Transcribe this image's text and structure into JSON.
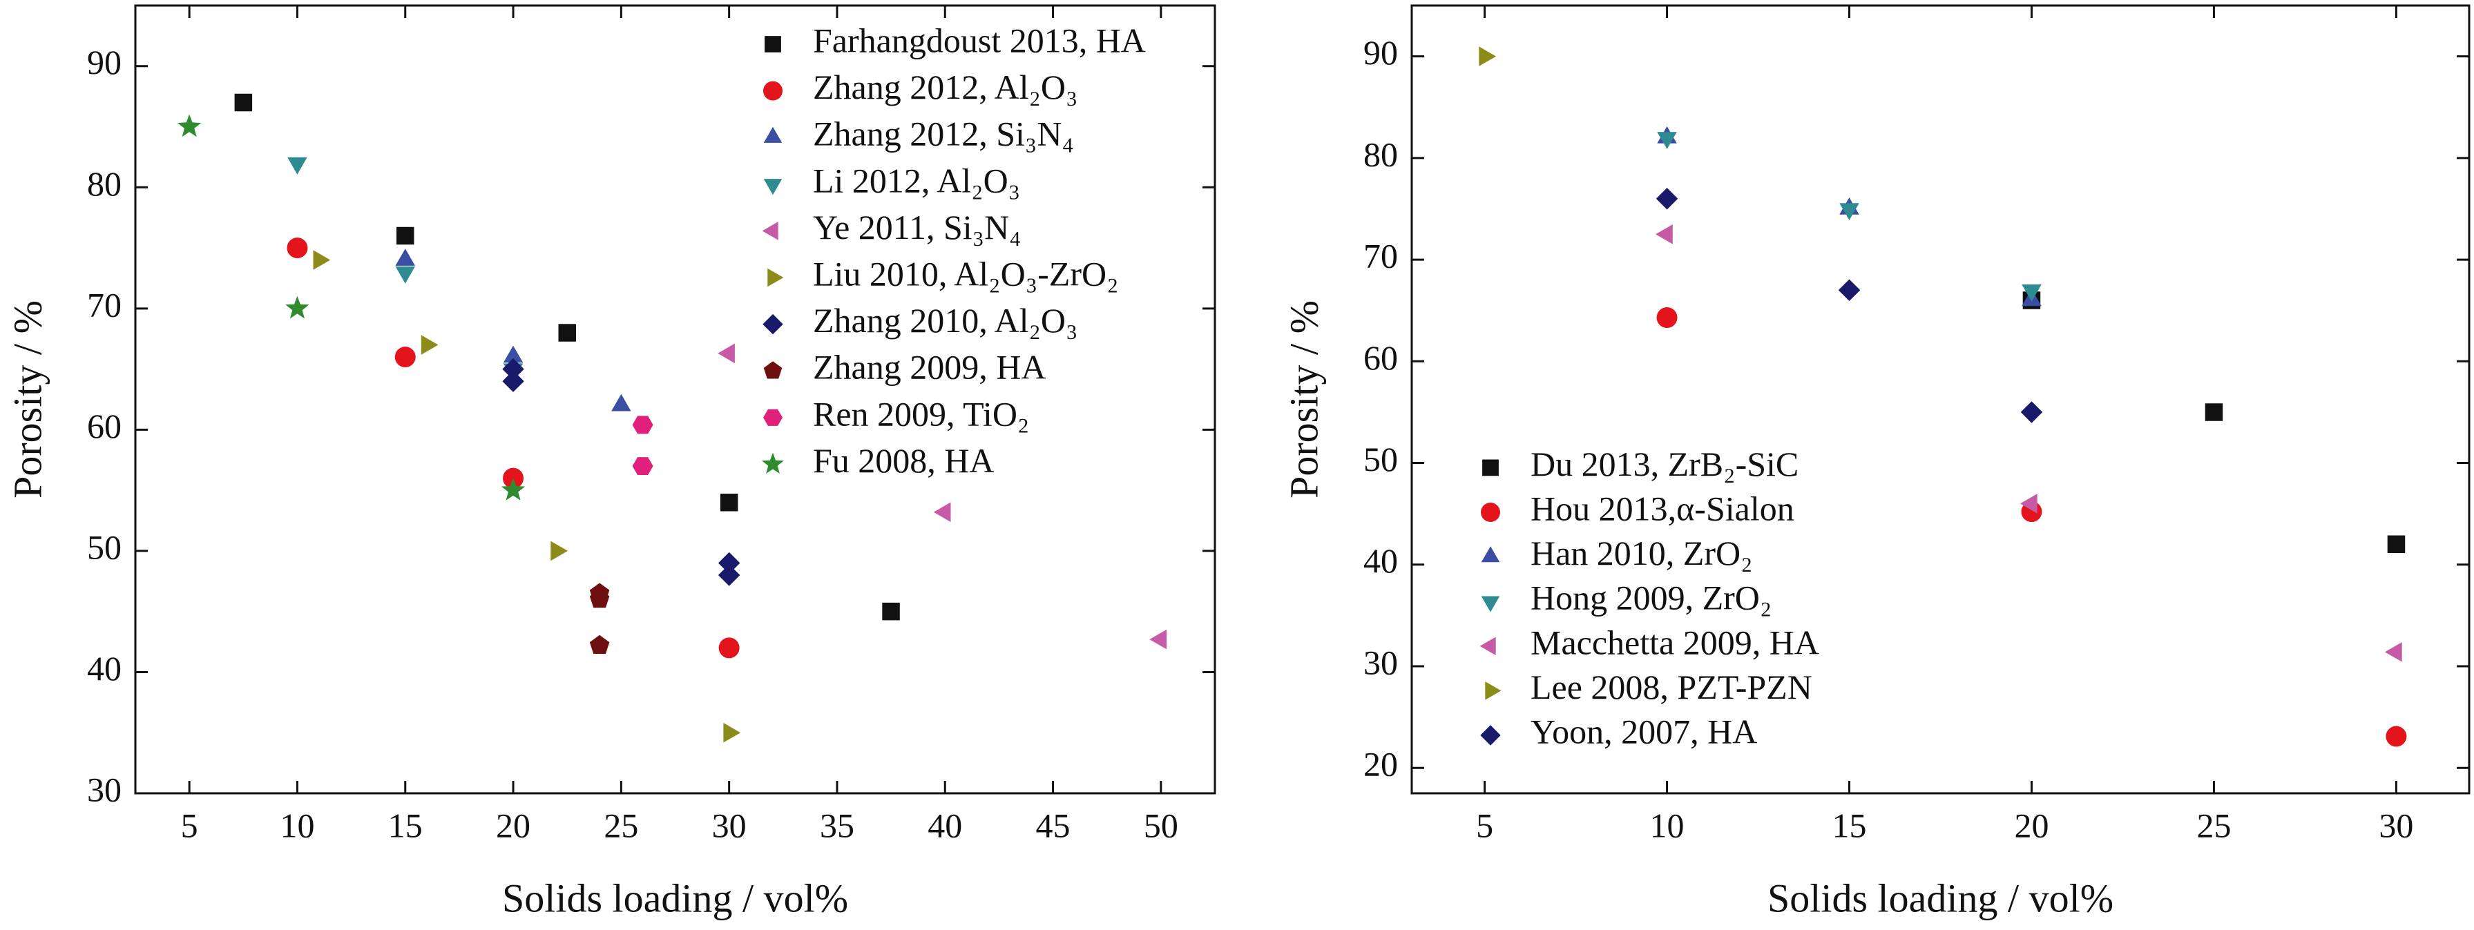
{
  "chart_data": [
    {
      "type": "scatter",
      "xlabel": "Solids loading / vol%",
      "ylabel": "Porosity / %",
      "xlim": [
        2.5,
        52.5
      ],
      "xticks": [
        5,
        10,
        15,
        20,
        25,
        30,
        35,
        40,
        45,
        50
      ],
      "ylim": [
        30,
        95
      ],
      "yticks": [
        30,
        40,
        50,
        60,
        70,
        80,
        90
      ],
      "legend": "upper right",
      "series": [
        {
          "name": "Farhangdoust 2013, HA",
          "color": "#111111",
          "marker": "square",
          "x": [
            7.5,
            15,
            22.5,
            30,
            37.5
          ],
          "y": [
            87,
            76,
            68,
            54,
            45
          ]
        },
        {
          "name": "Zhang 2012, Al₂O₃",
          "color": "#e3141b",
          "marker": "circle",
          "x": [
            10,
            15,
            20,
            30
          ],
          "y": [
            75,
            66,
            56,
            42
          ]
        },
        {
          "name": "Zhang 2012, Si₃N₄",
          "color": "#3a4fa3",
          "marker": "triangle-up",
          "x": [
            15,
            20,
            25
          ],
          "y": [
            74,
            66,
            62
          ]
        },
        {
          "name": "Li 2012, Al₂O₃",
          "color": "#2e8b92",
          "marker": "triangle-down",
          "x": [
            10,
            15,
            20
          ],
          "y": [
            82,
            73,
            65
          ]
        },
        {
          "name": "Ye 2011, Si₃N₄",
          "color": "#c65aa6",
          "marker": "triangle-left",
          "x": [
            30,
            40,
            50
          ],
          "y": [
            66.3,
            53.2,
            42.7
          ]
        },
        {
          "name": "Liu 2010, Al₂O₃-ZrO₂",
          "color": "#8d8c1b",
          "marker": "triangle-right",
          "x": [
            11,
            16,
            22,
            30
          ],
          "y": [
            74,
            67,
            50,
            35
          ]
        },
        {
          "name": "Zhang 2010, Al₂O₃",
          "color": "#1a1a6b",
          "marker": "diamond",
          "x": [
            20,
            20,
            30,
            30
          ],
          "y": [
            65,
            64,
            49,
            48
          ]
        },
        {
          "name": "Zhang 2009, HA",
          "color": "#6e1010",
          "marker": "pentagon",
          "x": [
            24,
            24,
            24
          ],
          "y": [
            46.5,
            46,
            42.2
          ]
        },
        {
          "name": "Ren 2009, TiO₂",
          "color": "#e0207a",
          "marker": "hexagon",
          "x": [
            26,
            26
          ],
          "y": [
            60.4,
            57
          ]
        },
        {
          "name": "Fu 2008, HA",
          "color": "#2e8b2e",
          "marker": "star",
          "x": [
            5,
            10,
            20
          ],
          "y": [
            85,
            70,
            55
          ]
        }
      ]
    },
    {
      "type": "scatter",
      "xlabel": "Solids loading / vol%",
      "ylabel": "Porosity / %",
      "xlim": [
        3,
        32
      ],
      "xticks": [
        5,
        10,
        15,
        20,
        25,
        30
      ],
      "ylim": [
        17.5,
        95
      ],
      "yticks": [
        20,
        30,
        40,
        50,
        60,
        70,
        80,
        90
      ],
      "legend": "lower left",
      "series": [
        {
          "name": "Du 2013, ZrB₂-SiC",
          "color": "#111111",
          "marker": "square",
          "x": [
            20,
            25,
            30
          ],
          "y": [
            66,
            55,
            42
          ]
        },
        {
          "name": "Hou 2013,α-Sialon",
          "color": "#e3141b",
          "marker": "circle",
          "x": [
            10,
            20,
            30
          ],
          "y": [
            64.3,
            45.2,
            23.1
          ]
        },
        {
          "name": "Han 2010, ZrO₂",
          "color": "#3a4fa3",
          "marker": "triangle-up",
          "x": [
            10,
            15,
            20
          ],
          "y": [
            82,
            75,
            66
          ]
        },
        {
          "name": "Hong 2009, ZrO₂",
          "color": "#2e8b92",
          "marker": "triangle-down",
          "x": [
            10,
            15,
            20
          ],
          "y": [
            82,
            75,
            67
          ]
        },
        {
          "name": "Macchetta 2009, HA",
          "color": "#c65aa6",
          "marker": "triangle-left",
          "x": [
            10,
            20,
            30
          ],
          "y": [
            72.5,
            46,
            31.4
          ]
        },
        {
          "name": "Lee 2008, PZT-PZN",
          "color": "#8d8c1b",
          "marker": "triangle-right",
          "x": [
            5
          ],
          "y": [
            90
          ]
        },
        {
          "name": "Yoon, 2007, HA",
          "color": "#1a1a6b",
          "marker": "diamond",
          "x": [
            10,
            15,
            20
          ],
          "y": [
            76,
            67,
            55
          ]
        }
      ]
    }
  ]
}
